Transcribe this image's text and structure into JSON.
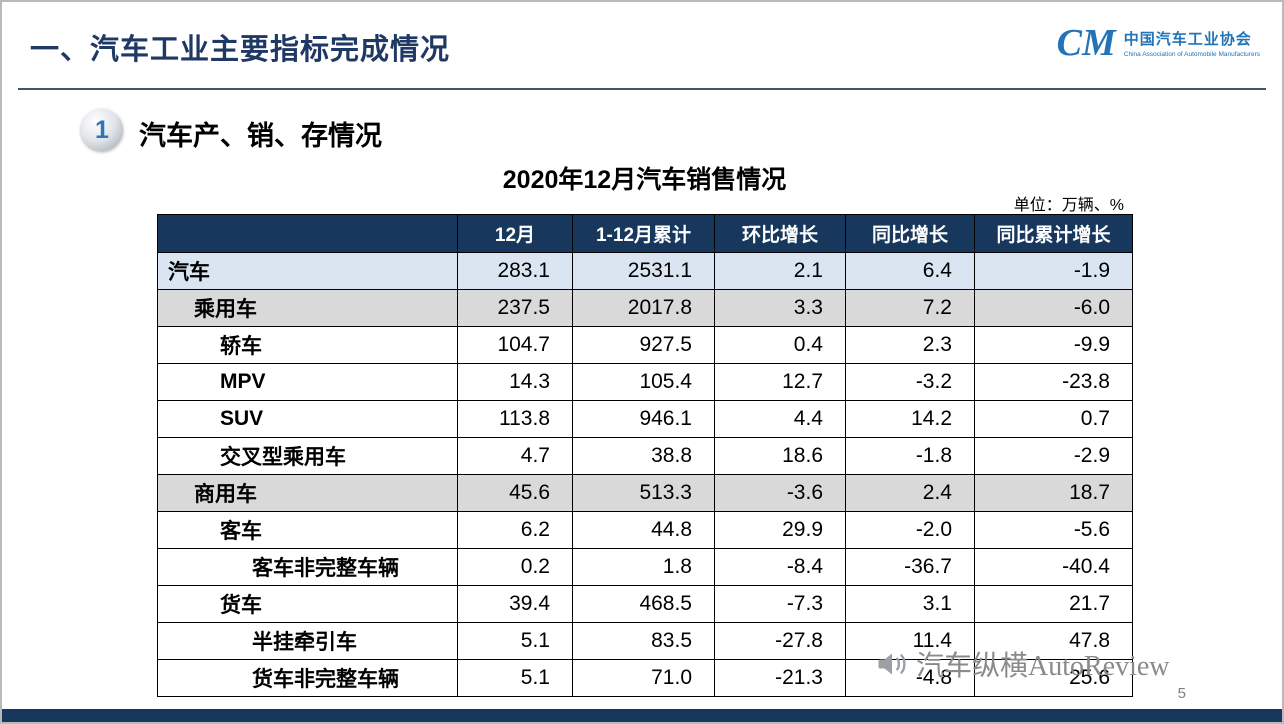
{
  "page": {
    "title": "一、汽车工业主要指标完成情况",
    "page_number": "5"
  },
  "logo": {
    "mark": "CM",
    "name_cn": "中国汽车工业协会",
    "name_en": "China Association of Automobile Manufacturers"
  },
  "section": {
    "number": "1",
    "heading": "汽车产、销、存情况"
  },
  "table": {
    "title": "2020年12月汽车销售情况",
    "unit_label": "单位：万辆、%",
    "headers": [
      "",
      "12月",
      "1-12月累计",
      "环比增长",
      "同比增长",
      "同比累计增长"
    ],
    "rows": [
      {
        "label": "汽车",
        "values": [
          "283.1",
          "2531.1",
          "2.1",
          "6.4",
          "-1.9"
        ],
        "style": "blue",
        "indent": 0
      },
      {
        "label": "乘用车",
        "values": [
          "237.5",
          "2017.8",
          "3.3",
          "7.2",
          "-6.0"
        ],
        "style": "gray",
        "indent": 1
      },
      {
        "label": "轿车",
        "values": [
          "104.7",
          "927.5",
          "0.4",
          "2.3",
          "-9.9"
        ],
        "style": "white",
        "indent": 2
      },
      {
        "label": "MPV",
        "values": [
          "14.3",
          "105.4",
          "12.7",
          "-3.2",
          "-23.8"
        ],
        "style": "white",
        "indent": 2
      },
      {
        "label": "SUV",
        "values": [
          "113.8",
          "946.1",
          "4.4",
          "14.2",
          "0.7"
        ],
        "style": "white",
        "indent": 2
      },
      {
        "label": "交叉型乘用车",
        "values": [
          "4.7",
          "38.8",
          "18.6",
          "-1.8",
          "-2.9"
        ],
        "style": "white",
        "indent": 2
      },
      {
        "label": "商用车",
        "values": [
          "45.6",
          "513.3",
          "-3.6",
          "2.4",
          "18.7"
        ],
        "style": "gray",
        "indent": 1
      },
      {
        "label": "客车",
        "values": [
          "6.2",
          "44.8",
          "29.9",
          "-2.0",
          "-5.6"
        ],
        "style": "white",
        "indent": 2
      },
      {
        "label": "客车非完整车辆",
        "values": [
          "0.2",
          "1.8",
          "-8.4",
          "-36.7",
          "-40.4"
        ],
        "style": "white",
        "indent": 3
      },
      {
        "label": "货车",
        "values": [
          "39.4",
          "468.5",
          "-7.3",
          "3.1",
          "21.7"
        ],
        "style": "white",
        "indent": 2
      },
      {
        "label": "半挂牵引车",
        "values": [
          "5.1",
          "83.5",
          "-27.8",
          "11.4",
          "47.8"
        ],
        "style": "white",
        "indent": 3
      },
      {
        "label": "货车非完整车辆",
        "values": [
          "5.1",
          "71.0",
          "-21.3",
          "-4.8",
          "25.6"
        ],
        "style": "white",
        "indent": 3
      }
    ]
  },
  "watermark": {
    "icon": "megaphone-icon",
    "text": "汽车纵横AutoReview"
  },
  "colors": {
    "header_bg": "#17375d",
    "highlight_row_blue": "#dbe5f1",
    "subtotal_row_gray": "#d9d9d9",
    "title_navy": "#1f3864",
    "logo_blue": "#2273b8",
    "bottom_bar": "#17375d"
  }
}
